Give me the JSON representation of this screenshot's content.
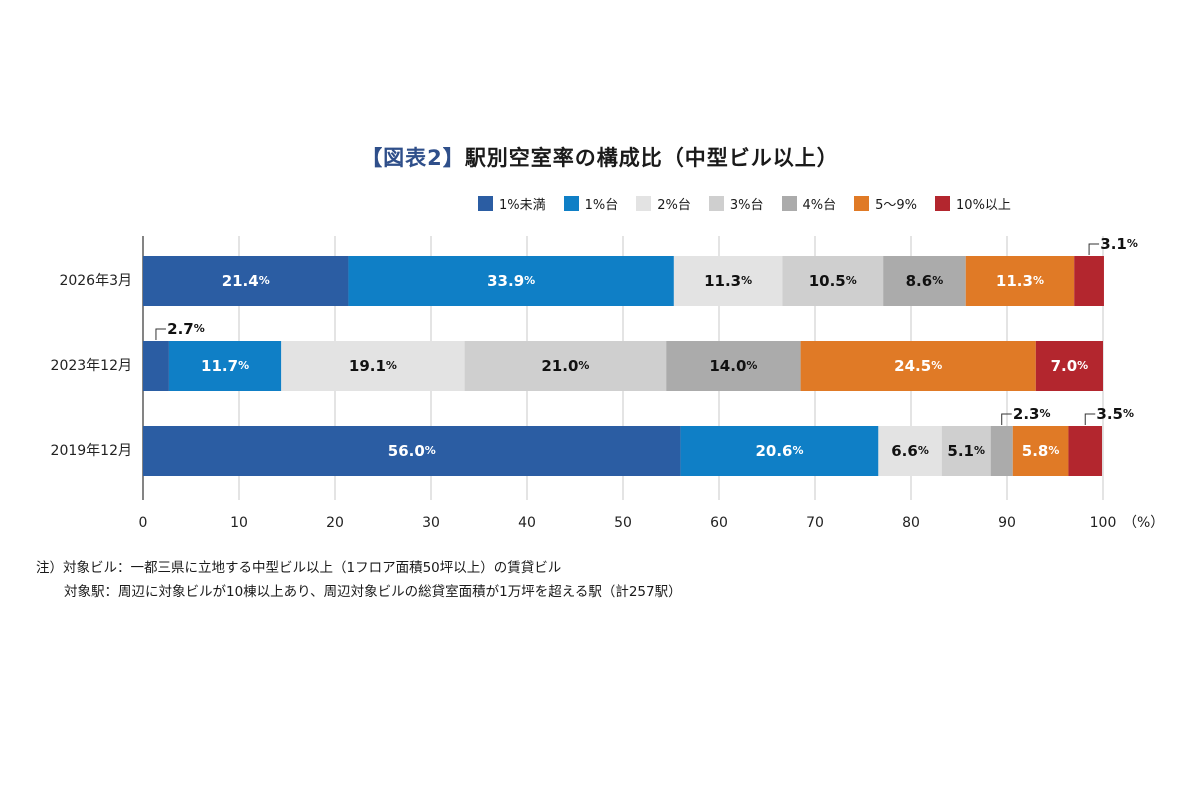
{
  "title": {
    "prefix": "【図表2】",
    "main": "駅別空室率の構成比（中型ビル以上）"
  },
  "legend": [
    {
      "label": "1%未満",
      "color": "#2b5da3"
    },
    {
      "label": "1%台",
      "color": "#0f7fc6"
    },
    {
      "label": "2%台",
      "color": "#e3e3e3"
    },
    {
      "label": "3%台",
      "color": "#cfcfcf"
    },
    {
      "label": "4%台",
      "color": "#ababab"
    },
    {
      "label": "5〜9%",
      "color": "#e07a26"
    },
    {
      "label": "10%以上",
      "color": "#b3262e"
    }
  ],
  "notes": {
    "line1": "注）対象ビル：一都三県に立地する中型ビル以上（1フロア面積50坪以上）の賃貸ビル",
    "line2": "対象駅：周辺に対象ビルが10棟以上あり、周辺対象ビルの総貸室面積が1万坪を超える駅（計257駅）"
  },
  "chart_data": {
    "type": "bar",
    "orientation": "horizontal",
    "stacked": true,
    "categories": [
      "2026年3月",
      "2023年12月",
      "2019年12月"
    ],
    "series": [
      {
        "name": "1%未満",
        "values": [
          21.4,
          2.7,
          56.0
        ],
        "color": "#2b5da3",
        "label_color": "#ffffff"
      },
      {
        "name": "1%台",
        "values": [
          33.9,
          11.7,
          20.6
        ],
        "color": "#0f7fc6",
        "label_color": "#ffffff"
      },
      {
        "name": "2%台",
        "values": [
          11.3,
          19.1,
          6.6
        ],
        "color": "#e3e3e3",
        "label_color": "#111111"
      },
      {
        "name": "3%台",
        "values": [
          10.5,
          21.0,
          5.1
        ],
        "color": "#cfcfcf",
        "label_color": "#111111"
      },
      {
        "name": "4%台",
        "values": [
          8.6,
          14.0,
          2.3
        ],
        "color": "#ababab",
        "label_color": "#111111"
      },
      {
        "name": "5〜9%",
        "values": [
          11.3,
          24.5,
          5.8
        ],
        "color": "#e07a26",
        "label_color": "#ffffff"
      },
      {
        "name": "10%以上",
        "values": [
          3.1,
          7.0,
          3.5
        ],
        "color": "#b3262e",
        "label_color": "#ffffff"
      }
    ],
    "outside_labels": [
      {
        "category": "2026年3月",
        "series": "10%以上"
      },
      {
        "category": "2023年12月",
        "series": "1%未満"
      },
      {
        "category": "2019年12月",
        "series": "4%台"
      },
      {
        "category": "2019年12月",
        "series": "10%以上"
      }
    ],
    "x_ticks": [
      0,
      10,
      20,
      30,
      40,
      50,
      60,
      70,
      80,
      90,
      100
    ],
    "x_unit": "（%）",
    "xlim": [
      0,
      100
    ],
    "value_unit": "%",
    "grid": true,
    "legend_position": "top-right"
  }
}
